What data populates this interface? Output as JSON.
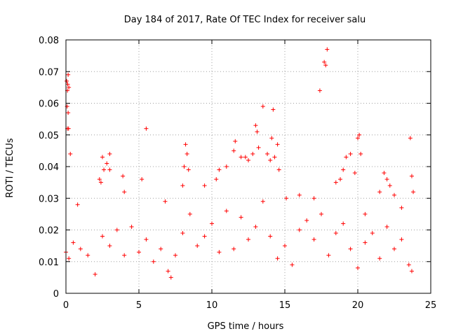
{
  "chart_data": {
    "type": "scatter",
    "title": "Day 184 of 2017, Rate Of TEC Index for receiver salu",
    "xlabel": "GPS time / hours",
    "ylabel": "ROTI / TECUs",
    "xlim": [
      0,
      25
    ],
    "ylim": [
      0,
      0.08
    ],
    "x_ticks": [
      "0",
      "5",
      "10",
      "15",
      "20",
      "25"
    ],
    "y_ticks": [
      "0",
      "0.01",
      "0.02",
      "0.03",
      "0.04",
      "0.05",
      "0.06",
      "0.07",
      "0.08"
    ],
    "grid": true,
    "marker": "+",
    "color": "#ff0000",
    "series": [
      {
        "values": [
          [
            0.05,
            0.067
          ],
          [
            0.1,
            0.064
          ],
          [
            0.15,
            0.069
          ],
          [
            0.12,
            0.066
          ],
          [
            0.2,
            0.065
          ],
          [
            0.08,
            0.059
          ],
          [
            0.15,
            0.057
          ],
          [
            0.1,
            0.052
          ],
          [
            0.18,
            0.052
          ],
          [
            0.3,
            0.044
          ],
          [
            0.8,
            0.028
          ],
          [
            2.3,
            0.036
          ],
          [
            2.4,
            0.035
          ],
          [
            2.5,
            0.043
          ],
          [
            2.6,
            0.039
          ],
          [
            2.8,
            0.041
          ],
          [
            3.0,
            0.044
          ],
          [
            3.0,
            0.039
          ],
          [
            3.9,
            0.037
          ],
          [
            4.0,
            0.032
          ],
          [
            5.2,
            0.036
          ],
          [
            5.5,
            0.052
          ],
          [
            6.8,
            0.029
          ],
          [
            8.0,
            0.034
          ],
          [
            8.1,
            0.04
          ],
          [
            8.2,
            0.047
          ],
          [
            8.3,
            0.044
          ],
          [
            8.4,
            0.039
          ],
          [
            9.5,
            0.034
          ],
          [
            10.3,
            0.036
          ],
          [
            10.5,
            0.039
          ],
          [
            11.0,
            0.04
          ],
          [
            11.5,
            0.045
          ],
          [
            11.6,
            0.048
          ],
          [
            12.0,
            0.043
          ],
          [
            12.3,
            0.043
          ],
          [
            12.5,
            0.042
          ],
          [
            12.8,
            0.044
          ],
          [
            13.0,
            0.053
          ],
          [
            13.1,
            0.051
          ],
          [
            13.2,
            0.046
          ],
          [
            13.5,
            0.059
          ],
          [
            13.8,
            0.044
          ],
          [
            14.0,
            0.042
          ],
          [
            14.1,
            0.049
          ],
          [
            14.2,
            0.058
          ],
          [
            14.3,
            0.043
          ],
          [
            14.5,
            0.047
          ],
          [
            14.6,
            0.039
          ],
          [
            15.1,
            0.03
          ],
          [
            16.0,
            0.031
          ],
          [
            17.0,
            0.03
          ],
          [
            17.4,
            0.064
          ],
          [
            17.7,
            0.073
          ],
          [
            17.8,
            0.072
          ],
          [
            17.9,
            0.077
          ],
          [
            18.5,
            0.035
          ],
          [
            18.8,
            0.036
          ],
          [
            19.0,
            0.039
          ],
          [
            19.2,
            0.043
          ],
          [
            19.5,
            0.044
          ],
          [
            19.8,
            0.038
          ],
          [
            20.0,
            0.049
          ],
          [
            20.1,
            0.05
          ],
          [
            20.2,
            0.044
          ],
          [
            20.5,
            0.025
          ],
          [
            21.5,
            0.032
          ],
          [
            21.8,
            0.038
          ],
          [
            22.0,
            0.036
          ],
          [
            22.2,
            0.034
          ],
          [
            22.5,
            0.031
          ],
          [
            23.0,
            0.027
          ],
          [
            23.6,
            0.049
          ],
          [
            23.7,
            0.037
          ],
          [
            23.8,
            0.032
          ],
          [
            0.0,
            0.013
          ],
          [
            0.2,
            0.011
          ],
          [
            0.5,
            0.016
          ],
          [
            1.0,
            0.014
          ],
          [
            1.5,
            0.012
          ],
          [
            2.0,
            0.006
          ],
          [
            2.5,
            0.018
          ],
          [
            3.0,
            0.015
          ],
          [
            3.5,
            0.02
          ],
          [
            4.0,
            0.012
          ],
          [
            4.5,
            0.021
          ],
          [
            5.0,
            0.013
          ],
          [
            5.5,
            0.017
          ],
          [
            6.0,
            0.01
          ],
          [
            6.5,
            0.014
          ],
          [
            7.0,
            0.007
          ],
          [
            7.2,
            0.005
          ],
          [
            7.5,
            0.012
          ],
          [
            8.0,
            0.019
          ],
          [
            8.5,
            0.025
          ],
          [
            9.0,
            0.015
          ],
          [
            9.5,
            0.018
          ],
          [
            10.0,
            0.022
          ],
          [
            10.5,
            0.013
          ],
          [
            11.0,
            0.026
          ],
          [
            11.5,
            0.014
          ],
          [
            12.0,
            0.024
          ],
          [
            12.5,
            0.017
          ],
          [
            13.0,
            0.021
          ],
          [
            13.5,
            0.029
          ],
          [
            14.0,
            0.018
          ],
          [
            14.5,
            0.011
          ],
          [
            15.0,
            0.015
          ],
          [
            15.5,
            0.009
          ],
          [
            16.0,
            0.02
          ],
          [
            16.5,
            0.023
          ],
          [
            17.0,
            0.017
          ],
          [
            17.5,
            0.025
          ],
          [
            18.0,
            0.012
          ],
          [
            18.5,
            0.019
          ],
          [
            19.0,
            0.022
          ],
          [
            19.5,
            0.014
          ],
          [
            20.0,
            0.008
          ],
          [
            20.5,
            0.016
          ],
          [
            21.0,
            0.019
          ],
          [
            21.5,
            0.011
          ],
          [
            22.0,
            0.021
          ],
          [
            22.5,
            0.014
          ],
          [
            23.0,
            0.017
          ],
          [
            23.5,
            0.009
          ],
          [
            23.7,
            0.007
          ]
        ]
      }
    ]
  }
}
